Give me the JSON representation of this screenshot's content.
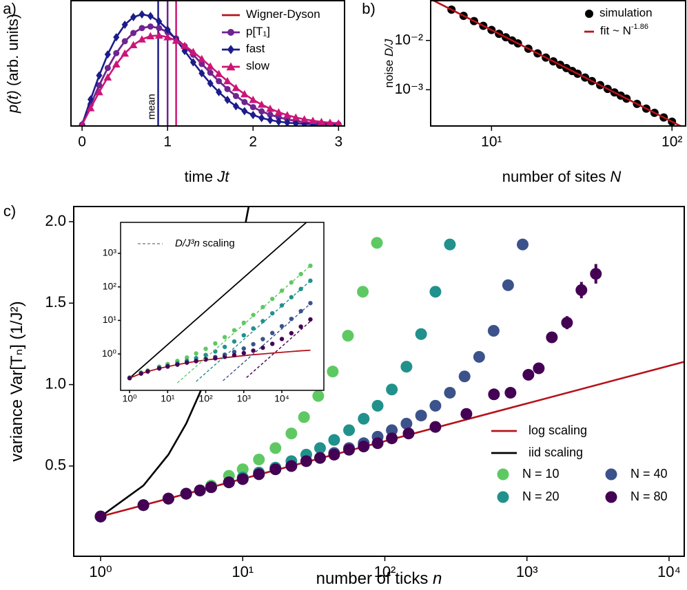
{
  "chart_data": [
    {
      "type": "line",
      "label": "a)",
      "xlabel": [
        {
          "text": "time "
        },
        {
          "text": "Jt",
          "italic": true
        }
      ],
      "ylabel": [
        {
          "text": "p(t)",
          "italic": true
        },
        {
          "text": " (arb. units)"
        }
      ],
      "xlim": [
        -0.13,
        3.07
      ],
      "ylim": [
        -0.01,
        0.96
      ],
      "xticks": [
        0,
        1,
        2,
        3
      ],
      "x": [
        0,
        0.1,
        0.2,
        0.3,
        0.4,
        0.5,
        0.6,
        0.7,
        0.8,
        0.9,
        1.0,
        1.1,
        1.2,
        1.3,
        1.4,
        1.5,
        1.6,
        1.7,
        1.8,
        1.9,
        2.0,
        2.1,
        2.2,
        2.3,
        2.4,
        2.5,
        2.6,
        2.7,
        2.8,
        2.9,
        3.0
      ],
      "series": [
        {
          "name": "Wigner-Dyson",
          "color": "#b5121b",
          "line": true,
          "values": [
            0,
            0.156,
            0.305,
            0.439,
            0.554,
            0.646,
            0.71,
            0.748,
            0.76,
            0.748,
            0.716,
            0.668,
            0.608,
            0.542,
            0.47,
            0.403,
            0.337,
            0.276,
            0.222,
            0.175,
            0.136,
            0.103,
            0.077,
            0.057,
            0.041,
            0.029,
            0.02,
            0.014,
            0.009,
            0.006,
            0.004
          ]
        },
        {
          "name": "p[T₁]",
          "color": "#6e2491",
          "line": true,
          "marker": "circle",
          "values": [
            0,
            0.156,
            0.305,
            0.439,
            0.554,
            0.646,
            0.71,
            0.748,
            0.76,
            0.748,
            0.716,
            0.668,
            0.608,
            0.542,
            0.47,
            0.403,
            0.337,
            0.276,
            0.222,
            0.175,
            0.136,
            0.103,
            0.077,
            0.057,
            0.041,
            0.029,
            0.02,
            0.014,
            0.009,
            0.006,
            0.004
          ]
        },
        {
          "name": "fast",
          "color": "#1c1c8a",
          "line": true,
          "marker": "diamond",
          "values": [
            0,
            0.196,
            0.381,
            0.544,
            0.677,
            0.774,
            0.833,
            0.854,
            0.841,
            0.799,
            0.736,
            0.657,
            0.571,
            0.483,
            0.398,
            0.32,
            0.252,
            0.192,
            0.143,
            0.105,
            0.075,
            0.052,
            0.036,
            0.024,
            0.016,
            0.01,
            0.006,
            0.004,
            0.002,
            0.001,
            0.001
          ]
        },
        {
          "name": "slow",
          "color": "#cc1577",
          "line": true,
          "marker": "triangle",
          "values": [
            0,
            0.129,
            0.253,
            0.367,
            0.468,
            0.552,
            0.617,
            0.661,
            0.686,
            0.691,
            0.678,
            0.651,
            0.612,
            0.564,
            0.509,
            0.452,
            0.394,
            0.338,
            0.285,
            0.237,
            0.193,
            0.156,
            0.124,
            0.097,
            0.074,
            0.056,
            0.042,
            0.031,
            0.022,
            0.016,
            0.011
          ]
        }
      ],
      "means": [
        {
          "x": 0.89,
          "color": "#1c1c8a"
        },
        {
          "x": 1.0,
          "color": "#6e2491"
        },
        {
          "x": 1.1,
          "color": "#cc1577"
        }
      ],
      "mean_label": "mean"
    },
    {
      "type": "scatter",
      "label": "b)",
      "xlabel": [
        {
          "text": "number of sites "
        },
        {
          "text": "N",
          "italic": true
        }
      ],
      "ylabel": [
        {
          "text": "noise "
        },
        {
          "text": "D/J",
          "italic": true
        }
      ],
      "xlog": true,
      "ylog": true,
      "xlim": [
        4.6,
        119
      ],
      "ylim": [
        0.000184,
        0.064
      ],
      "xticks": [
        {
          "value": 10,
          "label": "10¹"
        },
        {
          "value": 100,
          "label": "10²"
        }
      ],
      "yticks": [
        {
          "value": 0.01,
          "label": "10⁻²"
        },
        {
          "value": 0.001,
          "label": "10⁻³"
        }
      ],
      "series": [
        {
          "name": "simulation",
          "color": "#000000",
          "marker": "circle",
          "x": [
            6,
            7,
            8,
            9,
            10,
            11,
            12,
            13,
            14,
            16,
            18,
            20,
            22,
            24,
            26,
            28,
            30,
            33,
            36,
            40,
            44,
            48,
            52,
            56,
            64,
            72,
            80,
            90,
            100
          ],
          "values": [
            0.0421,
            0.0316,
            0.0247,
            0.0198,
            0.0163,
            0.0136,
            0.0116,
            0.01,
            0.00871,
            0.0068,
            0.00546,
            0.00449,
            0.00376,
            0.0032,
            0.00275,
            0.0024,
            0.00211,
            0.00177,
            0.0015,
            0.00124,
            0.00104,
            0.000881,
            0.000759,
            0.000661,
            0.000516,
            0.000414,
            0.00034,
            0.000274,
            0.000225
          ]
        },
        {
          "name": "fit ~ N",
          "name_exponent": "-1.86",
          "color": "#b5121b",
          "line": true,
          "x": [
            4.6,
            119
          ],
          "values": [
            0.069,
            0.000163
          ]
        }
      ]
    },
    {
      "type": "scatter",
      "label": "c)",
      "xlabel": [
        {
          "text": "number of ticks "
        },
        {
          "text": "n",
          "italic": true
        }
      ],
      "ylabel": [
        {
          "text": "variance Var[Tₙ] (1/J²)"
        }
      ],
      "xlog": true,
      "xlim": [
        0.647,
        12790
      ],
      "ylim": [
        -0.054,
        2.093
      ],
      "xticks": [
        {
          "value": 1,
          "label": "10⁰"
        },
        {
          "value": 10,
          "label": "10¹"
        },
        {
          "value": 100,
          "label": "10²"
        },
        {
          "value": 1000,
          "label": "10³"
        },
        {
          "value": 10000,
          "label": "10⁴"
        }
      ],
      "yticks": [
        0.5,
        {
          "value": 1,
          "label": "1.0"
        },
        1.5,
        {
          "value": 2,
          "label": "2.0"
        }
      ],
      "series": [
        {
          "name": "log scaling",
          "color": "#b5121b",
          "line": true,
          "x": [
            1,
            12790
          ],
          "values": [
            0.19,
            1.14
          ]
        },
        {
          "name": "iid scaling",
          "color": "#000000",
          "line": true,
          "x": [
            1,
            2,
            3,
            4,
            5,
            6,
            7,
            8,
            9,
            10,
            11
          ],
          "values": [
            0.19,
            0.38,
            0.57,
            0.76,
            0.95,
            1.14,
            1.33,
            1.52,
            1.71,
            1.9,
            2.09
          ]
        },
        {
          "name": "N = 10",
          "color": "#5ec962",
          "marker": "circle",
          "x": [
            1,
            2,
            3,
            4,
            5,
            6,
            8,
            10,
            13,
            17,
            22,
            27,
            34,
            43,
            55,
            70,
            88
          ],
          "values": [
            0.19,
            0.26,
            0.3,
            0.33,
            0.35,
            0.38,
            0.44,
            0.48,
            0.54,
            0.61,
            0.7,
            0.8,
            0.93,
            1.08,
            1.3,
            1.57,
            1.87
          ]
        },
        {
          "name": "N = 20",
          "color": "#21918c",
          "marker": "circle",
          "x": [
            1,
            2,
            3,
            4,
            5,
            6,
            8,
            10,
            13,
            17,
            22,
            28,
            35,
            44,
            56,
            71,
            89,
            112,
            142,
            180,
            227,
            287
          ],
          "values": [
            0.19,
            0.26,
            0.3,
            0.33,
            0.35,
            0.37,
            0.4,
            0.43,
            0.46,
            0.49,
            0.53,
            0.57,
            0.61,
            0.66,
            0.72,
            0.79,
            0.87,
            0.97,
            1.11,
            1.31,
            1.57,
            1.86
          ]
        },
        {
          "name": "N = 40",
          "color": "#3b528b",
          "marker": "circle",
          "x": [
            1,
            2,
            3,
            4,
            5,
            6,
            8,
            10,
            13,
            17,
            22,
            28,
            35,
            44,
            56,
            71,
            89,
            112,
            142,
            180,
            227,
            287,
            364,
            461,
            583,
            737,
            933
          ],
          "values": [
            0.19,
            0.26,
            0.3,
            0.33,
            0.35,
            0.37,
            0.4,
            0.42,
            0.45,
            0.48,
            0.5,
            0.53,
            0.55,
            0.58,
            0.61,
            0.64,
            0.68,
            0.72,
            0.76,
            0.81,
            0.87,
            0.95,
            1.05,
            1.17,
            1.33,
            1.61,
            1.86
          ],
          "errors": [
            null,
            null,
            null,
            null,
            null,
            null,
            null,
            null,
            null,
            null,
            null,
            null,
            null,
            null,
            null,
            null,
            null,
            null,
            null,
            null,
            null,
            null,
            null,
            0.015,
            0.02,
            0.03,
            0.035
          ]
        },
        {
          "name": "N = 80",
          "color": "#440154",
          "marker": "circle",
          "x": [
            1,
            2,
            3,
            4,
            5,
            6,
            8,
            10,
            13,
            17,
            22,
            28,
            35,
            44,
            56,
            71,
            89,
            112,
            147,
            227,
            375,
            586,
            766,
            1024,
            1211,
            1497,
            1914,
            2417,
            3055
          ],
          "values": [
            0.19,
            0.26,
            0.3,
            0.33,
            0.35,
            0.37,
            0.4,
            0.42,
            0.45,
            0.48,
            0.5,
            0.53,
            0.55,
            0.57,
            0.6,
            0.62,
            0.64,
            0.67,
            0.7,
            0.74,
            0.82,
            0.94,
            0.95,
            1.06,
            1.1,
            1.29,
            1.38,
            1.58,
            1.68
          ],
          "errors": [
            null,
            null,
            null,
            null,
            null,
            null,
            null,
            null,
            null,
            null,
            null,
            null,
            null,
            null,
            null,
            null,
            null,
            null,
            null,
            null,
            null,
            null,
            null,
            0.02,
            0.025,
            0.03,
            0.04,
            0.05,
            0.06
          ]
        }
      ]
    },
    {
      "type": "scatter",
      "xlog": true,
      "ylog": true,
      "xlim": [
        0.58,
        127000
      ],
      "ylim": [
        0.082,
        8400
      ],
      "xticks": [
        {
          "value": 1,
          "label": "10⁰"
        },
        {
          "value": 10,
          "label": "10¹"
        },
        {
          "value": 100,
          "label": "10²"
        },
        {
          "value": 1000,
          "label": "10³"
        },
        {
          "value": 10000,
          "label": "10⁴"
        }
      ],
      "yticks": [
        {
          "value": 1,
          "label": "10⁰"
        },
        {
          "value": 10,
          "label": "10¹"
        },
        {
          "value": 100,
          "label": "10²"
        },
        {
          "value": 1000,
          "label": "10³"
        }
      ],
      "legend_label": [
        {
          "text": "D/J³n",
          "italic": true
        },
        {
          "text": " scaling"
        }
      ],
      "legend_color": "#888888",
      "x": [
        1,
        2,
        3,
        6,
        10,
        18,
        32,
        56,
        100,
        178,
        316,
        562,
        1000,
        1778,
        3162,
        5623,
        10000,
        17783,
        31623,
        56234
      ],
      "series": [
        {
          "color": "#b5121b",
          "line": true,
          "values": [
            0.19,
            0.26,
            0.3,
            0.37,
            0.42,
            0.48,
            0.54,
            0.6,
            0.66,
            0.71,
            0.77,
            0.83,
            0.89,
            0.95,
            1.0,
            1.06,
            1.12,
            1.18,
            1.24,
            1.29
          ]
        },
        {
          "color": "#000000",
          "line": true,
          "x": [
            1,
            44000
          ],
          "values": [
            0.19,
            8360
          ]
        },
        {
          "color": "#5ec962",
          "marker": "circle",
          "values": [
            0.2,
            0.28,
            0.32,
            0.42,
            0.5,
            0.62,
            0.78,
            1.03,
            1.42,
            2.06,
            3.17,
            5.1,
            8.49,
            14.5,
            25.0,
            43.8,
            77.1,
            136,
            241,
            428
          ]
        },
        {
          "color": "#21918c",
          "marker": "circle",
          "values": [
            0.19,
            0.27,
            0.31,
            0.39,
            0.45,
            0.53,
            0.63,
            0.75,
            0.93,
            1.19,
            1.62,
            2.35,
            3.59,
            5.75,
            9.54,
            16.3,
            28.1,
            49.2,
            86.6,
            153
          ]
        },
        {
          "color": "#3b528b",
          "marker": "circle",
          "values": [
            0.19,
            0.26,
            0.3,
            0.37,
            0.43,
            0.49,
            0.56,
            0.63,
            0.72,
            0.81,
            0.95,
            1.15,
            1.45,
            1.95,
            2.77,
            4.21,
            6.72,
            11.1,
            18.9,
            32.8
          ]
        },
        {
          "color": "#440154",
          "marker": "circle",
          "values": [
            0.19,
            0.26,
            0.3,
            0.37,
            0.42,
            0.48,
            0.55,
            0.61,
            0.68,
            0.74,
            0.82,
            0.92,
            1.06,
            1.25,
            1.53,
            2.0,
            2.79,
            4.15,
            6.52,
            10.7
          ]
        },
        {
          "color": "#5ec962",
          "line": true,
          "dash": true,
          "x": [
            18,
            56234
          ],
          "values": [
            0.137,
            427
          ]
        },
        {
          "color": "#21918c",
          "line": true,
          "dash": true,
          "x": [
            56,
            56234
          ],
          "values": [
            0.151,
            151.8
          ]
        },
        {
          "color": "#3b528b",
          "line": true,
          "dash": true,
          "x": [
            284,
            56234
          ],
          "values": [
            0.159,
            31.5
          ]
        },
        {
          "color": "#440154",
          "line": true,
          "dash": true,
          "x": [
            1180,
            56234
          ],
          "values": [
            0.197,
            9.39
          ]
        }
      ]
    }
  ]
}
